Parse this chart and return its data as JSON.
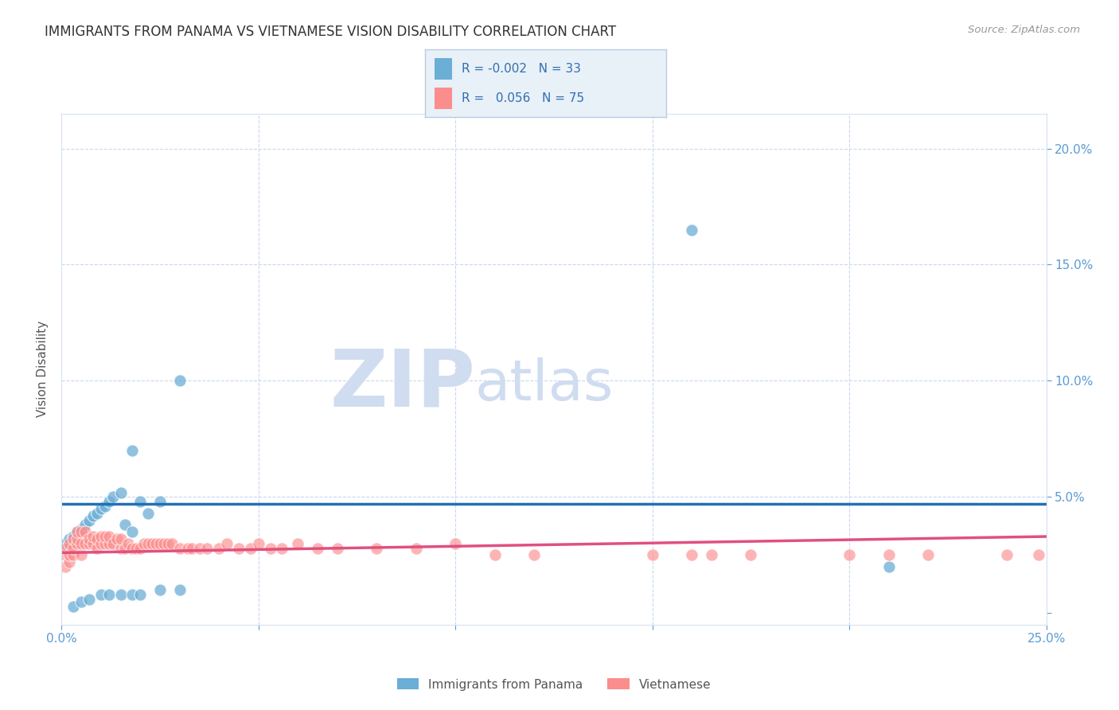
{
  "title": "IMMIGRANTS FROM PANAMA VS VIETNAMESE VISION DISABILITY CORRELATION CHART",
  "source": "Source: ZipAtlas.com",
  "ylabel": "Vision Disability",
  "xlim": [
    0.0,
    0.25
  ],
  "ylim": [
    -0.005,
    0.215
  ],
  "xticks": [
    0.0,
    0.05,
    0.1,
    0.15,
    0.2,
    0.25
  ],
  "xticklabels": [
    "0.0%",
    "",
    "",
    "",
    "",
    "25.0%"
  ],
  "yticks_left": [],
  "yticklabels_left": [],
  "right_yticks": [
    0.0,
    0.05,
    0.1,
    0.15,
    0.2
  ],
  "right_yticklabels": [
    "",
    "5.0%",
    "10.0%",
    "15.0%",
    "20.0%"
  ],
  "legend_r1": "-0.002",
  "legend_n1": "33",
  "legend_r2": "0.056",
  "legend_n2": "75",
  "color_panama": "#6baed6",
  "color_vietnamese": "#fc8d8d",
  "color_panama_line": "#2171b5",
  "color_vietnamese_line": "#e05080",
  "watermark_zip": "ZIP",
  "watermark_atlas": "atlas",
  "watermark_color": "#d0ddf0",
  "title_fontsize": 12,
  "axis_tick_color": "#5b9bd5",
  "grid_color": "#c8d8ee",
  "panama_x": [
    0.001,
    0.002,
    0.003,
    0.004,
    0.005,
    0.006,
    0.007,
    0.008,
    0.009,
    0.01,
    0.011,
    0.012,
    0.013,
    0.015,
    0.016,
    0.018,
    0.02,
    0.022,
    0.025,
    0.003,
    0.005,
    0.007,
    0.01,
    0.012,
    0.015,
    0.018,
    0.02,
    0.025,
    0.03,
    0.018,
    0.03,
    0.16,
    0.21
  ],
  "panama_y": [
    0.03,
    0.032,
    0.033,
    0.035,
    0.036,
    0.038,
    0.04,
    0.042,
    0.043,
    0.045,
    0.046,
    0.048,
    0.05,
    0.052,
    0.038,
    0.035,
    0.048,
    0.043,
    0.048,
    0.003,
    0.005,
    0.006,
    0.008,
    0.008,
    0.008,
    0.008,
    0.008,
    0.01,
    0.01,
    0.07,
    0.1,
    0.165,
    0.02
  ],
  "vietnamese_x": [
    0.001,
    0.001,
    0.001,
    0.002,
    0.002,
    0.002,
    0.003,
    0.003,
    0.003,
    0.004,
    0.004,
    0.004,
    0.005,
    0.005,
    0.005,
    0.006,
    0.006,
    0.007,
    0.007,
    0.008,
    0.008,
    0.009,
    0.009,
    0.01,
    0.01,
    0.011,
    0.011,
    0.012,
    0.012,
    0.013,
    0.014,
    0.015,
    0.015,
    0.016,
    0.017,
    0.018,
    0.019,
    0.02,
    0.021,
    0.022,
    0.023,
    0.024,
    0.025,
    0.026,
    0.027,
    0.028,
    0.03,
    0.032,
    0.033,
    0.035,
    0.037,
    0.04,
    0.042,
    0.045,
    0.048,
    0.05,
    0.053,
    0.056,
    0.06,
    0.065,
    0.07,
    0.08,
    0.09,
    0.1,
    0.11,
    0.12,
    0.15,
    0.16,
    0.165,
    0.175,
    0.2,
    0.21,
    0.22,
    0.24,
    0.248
  ],
  "vietnamese_y": [
    0.02,
    0.025,
    0.028,
    0.022,
    0.025,
    0.03,
    0.025,
    0.028,
    0.032,
    0.03,
    0.032,
    0.035,
    0.025,
    0.03,
    0.035,
    0.03,
    0.035,
    0.03,
    0.032,
    0.03,
    0.033,
    0.028,
    0.032,
    0.03,
    0.033,
    0.03,
    0.033,
    0.03,
    0.033,
    0.03,
    0.032,
    0.028,
    0.032,
    0.028,
    0.03,
    0.028,
    0.028,
    0.028,
    0.03,
    0.03,
    0.03,
    0.03,
    0.03,
    0.03,
    0.03,
    0.03,
    0.028,
    0.028,
    0.028,
    0.028,
    0.028,
    0.028,
    0.03,
    0.028,
    0.028,
    0.03,
    0.028,
    0.028,
    0.03,
    0.028,
    0.028,
    0.028,
    0.028,
    0.03,
    0.025,
    0.025,
    0.025,
    0.025,
    0.025,
    0.025,
    0.025,
    0.025,
    0.025,
    0.025,
    0.025
  ],
  "panama_trend_x": [
    0.0,
    0.25
  ],
  "panama_trend_y": [
    0.047,
    0.047
  ],
  "vietnamese_trend_x": [
    0.0,
    0.25
  ],
  "vietnamese_trend_y": [
    0.026,
    0.033
  ],
  "bg_color": "#ffffff",
  "legend_box_color": "#e8f0f8",
  "legend_box_edge": "#b8cce4",
  "bottom_legend_label1": "Immigrants from Panama",
  "bottom_legend_label2": "Vietnamese"
}
